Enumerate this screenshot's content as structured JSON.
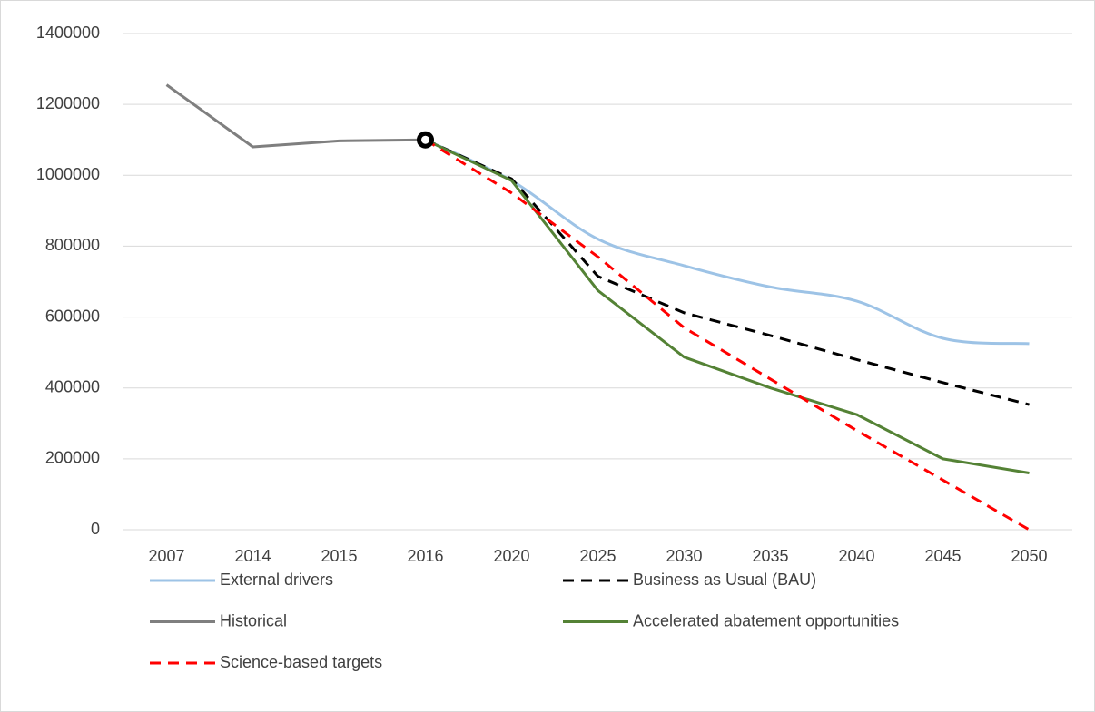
{
  "chart_data": {
    "type": "line",
    "categories": [
      "2007",
      "2014",
      "2015",
      "2016",
      "2020",
      "2025",
      "2030",
      "2035",
      "2040",
      "2045",
      "2050"
    ],
    "series": [
      {
        "name": "External drivers",
        "color": "#9dc3e6",
        "dashed": false,
        "smooth": true,
        "values": [
          null,
          null,
          null,
          1100000,
          985000,
          820000,
          745000,
          685000,
          645000,
          540000,
          525000
        ]
      },
      {
        "name": "Business as Usual (BAU)",
        "color": "#000000",
        "dashed": true,
        "smooth": false,
        "values": [
          null,
          null,
          null,
          1100000,
          990000,
          715000,
          612000,
          548000,
          480000,
          415000,
          353000
        ]
      },
      {
        "name": "Historical",
        "color": "#7f7f7f",
        "dashed": false,
        "smooth": false,
        "values": [
          1255000,
          1080000,
          1097000,
          1100000,
          null,
          null,
          null,
          null,
          null,
          null,
          null
        ],
        "marker_index": 3
      },
      {
        "name": "Accelerated abatement opportunities",
        "color": "#548235",
        "dashed": false,
        "smooth": false,
        "values": [
          null,
          null,
          null,
          1100000,
          985000,
          675000,
          487000,
          400000,
          325000,
          200000,
          160000
        ]
      },
      {
        "name": "Science-based targets",
        "color": "#ff0000",
        "dashed": true,
        "smooth": false,
        "values": [
          null,
          null,
          null,
          1100000,
          950000,
          770000,
          570000,
          425000,
          280000,
          140000,
          0
        ]
      }
    ],
    "ylim": [
      0,
      1400000
    ],
    "yticks": [
      0,
      200000,
      400000,
      600000,
      800000,
      1000000,
      1200000,
      1400000
    ],
    "grid": true,
    "legend": "bottom"
  }
}
